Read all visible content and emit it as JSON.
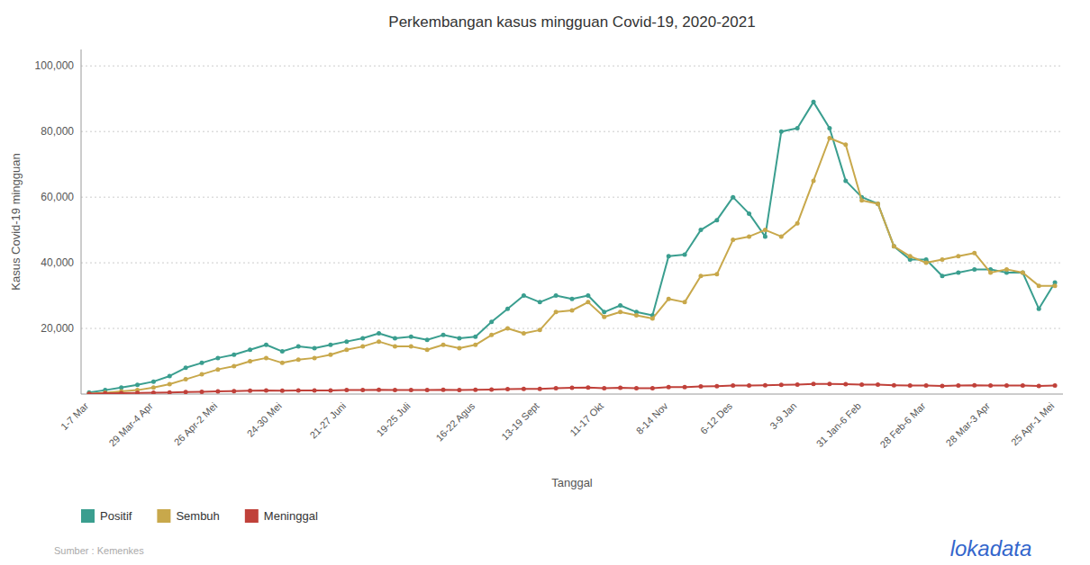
{
  "chart_data": {
    "type": "line",
    "title": "Perkembangan kasus mingguan Covid-19, 2020-2021",
    "x_label": "Tanggal",
    "y_label": "Kasus Covid-19 mingguan",
    "annotations": [
      "Sumber : Kemenkes",
      "lokadata"
    ],
    "categories": [
      "1-7 Mar",
      null,
      null,
      null,
      "29 Mar-4 Apr",
      null,
      null,
      null,
      "26 Apr-2 Mei",
      null,
      null,
      null,
      "24-30 Mei",
      null,
      null,
      null,
      "21-27 Juni",
      null,
      null,
      null,
      "19-25 Juli",
      null,
      null,
      null,
      "16-22 Agus",
      null,
      null,
      null,
      "13-19 Sept",
      null,
      null,
      null,
      "11-17 Okt",
      null,
      null,
      null,
      "8-14 Nov",
      null,
      null,
      null,
      "6-12 Des",
      null,
      null,
      null,
      "3-9 Jan",
      null,
      null,
      null,
      "31 Jan-6 Feb",
      null,
      null,
      null,
      "28 Feb-6 Mar",
      null,
      null,
      null,
      "28 Mar-3 Apr",
      null,
      null,
      null,
      "25 Apr-1 Mei"
    ],
    "series": [
      {
        "name": "Positif",
        "color": "#3a9e8f",
        "marker": "circle",
        "values": [
          500,
          1200,
          2000,
          2800,
          3800,
          5500,
          8000,
          9500,
          11000,
          12000,
          13500,
          15000,
          13000,
          14500,
          14000,
          15000,
          16000,
          17000,
          18500,
          17000,
          17500,
          16500,
          18000,
          17000,
          17500,
          22000,
          26000,
          30000,
          28000,
          30000,
          29000,
          30000,
          25000,
          27000,
          25000,
          24000,
          42000,
          42500,
          50000,
          53000,
          60000,
          55000,
          48000,
          80000,
          81000,
          89000,
          81000,
          65000,
          60000,
          58000,
          45000,
          41000,
          41000,
          36000,
          37000,
          38000,
          38000,
          37000,
          37000,
          26000,
          34000
        ]
      },
      {
        "name": "Sembuh",
        "color": "#c8a84b",
        "marker": "circle",
        "values": [
          100,
          400,
          800,
          1200,
          2000,
          3000,
          4500,
          6000,
          7500,
          8500,
          10000,
          11000,
          9500,
          10500,
          11000,
          12000,
          13500,
          14500,
          16000,
          14500,
          14500,
          13500,
          15000,
          14000,
          15000,
          18000,
          20000,
          18500,
          19500,
          25000,
          25500,
          28000,
          23500,
          25000,
          24000,
          23000,
          29000,
          28000,
          36000,
          36500,
          47000,
          48000,
          50000,
          48000,
          52000,
          65000,
          78000,
          76000,
          59000,
          58000,
          45000,
          42000,
          40000,
          41000,
          42000,
          43000,
          37000,
          38000,
          37000,
          33000,
          33000
        ]
      },
      {
        "name": "Meninggal",
        "color": "#c0413a",
        "marker": "circle",
        "values": [
          100,
          200,
          300,
          350,
          400,
          500,
          600,
          700,
          800,
          900,
          1000,
          1100,
          1000,
          1100,
          1100,
          1100,
          1200,
          1200,
          1300,
          1200,
          1200,
          1200,
          1300,
          1200,
          1300,
          1400,
          1500,
          1600,
          1600,
          1800,
          1900,
          2000,
          1800,
          1900,
          1800,
          1800,
          2100,
          2100,
          2300,
          2400,
          2600,
          2600,
          2700,
          2800,
          2900,
          3100,
          3100,
          3000,
          2900,
          2900,
          2700,
          2600,
          2600,
          2500,
          2600,
          2700,
          2600,
          2600,
          2600,
          2500,
          2600
        ]
      }
    ],
    "ylim": [
      0,
      105000
    ],
    "yticks": [
      {
        "value": 20000,
        "label": "20,000"
      },
      {
        "value": 40000,
        "label": "40,000"
      },
      {
        "value": 60000,
        "label": "60,000"
      },
      {
        "value": 80000,
        "label": "80,000"
      },
      {
        "value": 100000,
        "label": "100,000"
      }
    ],
    "grid": true,
    "legend": "bottom"
  }
}
